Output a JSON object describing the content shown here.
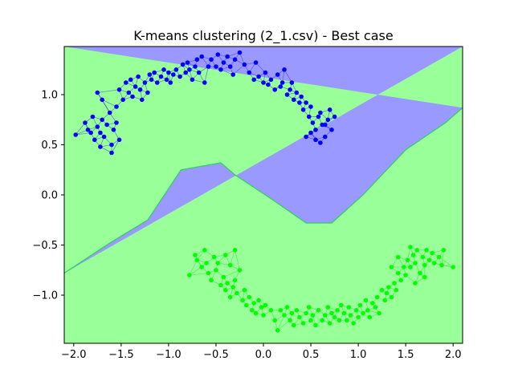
{
  "chart_data": {
    "type": "scatter",
    "title": "K-means clustering (2_1.csv) - Best case",
    "xlabel": "",
    "ylabel": "",
    "xlim": [
      -2.1,
      2.1
    ],
    "ylim": [
      -1.48,
      1.48
    ],
    "xticks": [
      "−2.0",
      "−1.5",
      "−1.0",
      "−0.5",
      "0.0",
      "0.5",
      "1.0",
      "1.5",
      "2.0"
    ],
    "xtick_values": [
      -2.0,
      -1.5,
      -1.0,
      -0.5,
      0.0,
      0.5,
      1.0,
      1.5,
      2.0
    ],
    "yticks": [
      "1.0",
      "0.5",
      "0.0",
      "−0.5",
      "−1.0"
    ],
    "ytick_values": [
      1.0,
      0.5,
      0.0,
      -0.5,
      -1.0
    ],
    "grid": false,
    "regions": [
      {
        "color": "#9999ff",
        "edge_color": "#3333dd",
        "boundary": [
          [
            -2.1,
            -0.78
          ],
          [
            -1.62,
            -0.48
          ],
          [
            -1.22,
            -0.25
          ],
          [
            -0.87,
            0.25
          ],
          [
            -0.45,
            0.32
          ],
          [
            -0.3,
            0.2
          ],
          [
            0.1,
            -0.05
          ],
          [
            0.45,
            -0.28
          ],
          [
            0.72,
            -0.28
          ],
          [
            1.05,
            0.0
          ],
          [
            1.5,
            0.45
          ],
          [
            1.92,
            0.72
          ],
          [
            2.1,
            0.87
          ]
        ]
      },
      {
        "color": "#99ff99",
        "edge_color": "#33dd33"
      }
    ],
    "series": [
      {
        "color": "#0000ff",
        "points": [
          [
            -1.98,
            0.6
          ],
          [
            -1.88,
            0.72
          ],
          [
            -1.85,
            0.65
          ],
          [
            -1.8,
            0.78
          ],
          [
            -1.78,
            0.55
          ],
          [
            -1.75,
            0.68
          ],
          [
            -1.72,
            0.62
          ],
          [
            -1.7,
            0.75
          ],
          [
            -1.68,
            0.58
          ],
          [
            -1.65,
            0.7
          ],
          [
            -1.62,
            0.82
          ],
          [
            -1.6,
            0.5
          ],
          [
            -1.58,
            0.65
          ],
          [
            -1.55,
            0.72
          ],
          [
            -1.52,
            0.55
          ],
          [
            -1.6,
            0.42
          ],
          [
            -1.72,
            0.48
          ],
          [
            -1.82,
            0.62
          ],
          [
            -1.7,
            0.95
          ],
          [
            -1.75,
            1.02
          ],
          [
            -1.55,
            0.88
          ],
          [
            -1.52,
            1.05
          ],
          [
            -1.48,
            0.95
          ],
          [
            -1.45,
            1.12
          ],
          [
            -1.42,
            1.02
          ],
          [
            -1.4,
            1.15
          ],
          [
            -1.38,
            0.98
          ],
          [
            -1.35,
            1.08
          ],
          [
            -1.32,
            1.18
          ],
          [
            -1.3,
            1.05
          ],
          [
            -1.28,
            0.95
          ],
          [
            -1.25,
            1.12
          ],
          [
            -1.22,
            1.02
          ],
          [
            -1.2,
            1.2
          ],
          [
            -1.18,
            1.15
          ],
          [
            -1.15,
            1.22
          ],
          [
            -1.12,
            1.12
          ],
          [
            -1.08,
            1.18
          ],
          [
            -1.05,
            1.25
          ],
          [
            -1.02,
            1.15
          ],
          [
            -1.0,
            1.22
          ],
          [
            -0.98,
            1.12
          ],
          [
            -0.95,
            1.2
          ],
          [
            -0.92,
            1.25
          ],
          [
            -0.88,
            1.18
          ],
          [
            -0.85,
            1.3
          ],
          [
            -0.82,
            1.22
          ],
          [
            -0.8,
            1.32
          ],
          [
            -0.78,
            1.25
          ],
          [
            -0.75,
            1.15
          ],
          [
            -0.72,
            1.28
          ],
          [
            -0.7,
            1.35
          ],
          [
            -0.68,
            1.22
          ],
          [
            -0.65,
            1.38
          ],
          [
            -0.62,
            1.12
          ],
          [
            -0.58,
            1.28
          ],
          [
            -0.55,
            1.35
          ],
          [
            -0.5,
            1.28
          ],
          [
            -0.48,
            1.4
          ],
          [
            -0.45,
            1.25
          ],
          [
            -0.42,
            1.32
          ],
          [
            -0.38,
            1.38
          ],
          [
            -0.35,
            1.28
          ],
          [
            -0.32,
            1.2
          ],
          [
            -0.3,
            1.35
          ],
          [
            -0.25,
            1.42
          ],
          [
            -0.2,
            1.3
          ],
          [
            -0.15,
            1.22
          ],
          [
            -0.1,
            1.15
          ],
          [
            -0.08,
            1.32
          ],
          [
            -0.05,
            1.18
          ],
          [
            0.0,
            1.12
          ],
          [
            0.02,
            1.22
          ],
          [
            0.05,
            1.1
          ],
          [
            0.08,
            1.15
          ],
          [
            0.12,
            1.05
          ],
          [
            0.15,
            1.2
          ],
          [
            0.18,
            1.08
          ],
          [
            0.2,
            1.12
          ],
          [
            0.22,
            1.25
          ],
          [
            0.25,
            1.0
          ],
          [
            0.28,
            1.05
          ],
          [
            0.3,
            1.12
          ],
          [
            0.32,
            0.95
          ],
          [
            0.35,
            1.02
          ],
          [
            0.38,
            0.92
          ],
          [
            0.4,
            0.98
          ],
          [
            0.42,
            0.85
          ],
          [
            0.45,
            0.92
          ],
          [
            0.48,
            0.78
          ],
          [
            0.5,
            0.88
          ],
          [
            0.52,
            0.72
          ],
          [
            0.55,
            0.65
          ],
          [
            0.58,
            0.78
          ],
          [
            0.6,
            0.82
          ],
          [
            0.62,
            0.7
          ],
          [
            0.65,
            0.58
          ],
          [
            0.68,
            0.75
          ],
          [
            0.7,
            0.85
          ],
          [
            0.72,
            0.65
          ],
          [
            0.75,
            0.78
          ],
          [
            0.45,
            0.58
          ],
          [
            0.5,
            0.62
          ],
          [
            0.55,
            0.55
          ],
          [
            0.6,
            0.52
          ],
          [
            0.65,
            0.7
          ]
        ]
      },
      {
        "color": "#00ff00",
        "points": [
          [
            -0.78,
            -0.8
          ],
          [
            -0.72,
            -0.6
          ],
          [
            -0.7,
            -0.65
          ],
          [
            -0.65,
            -0.72
          ],
          [
            -0.62,
            -0.55
          ],
          [
            -0.6,
            -0.68
          ],
          [
            -0.58,
            -0.78
          ],
          [
            -0.55,
            -0.85
          ],
          [
            -0.52,
            -0.62
          ],
          [
            -0.5,
            -0.75
          ],
          [
            -0.48,
            -0.68
          ],
          [
            -0.45,
            -0.9
          ],
          [
            -0.42,
            -0.82
          ],
          [
            -0.4,
            -0.95
          ],
          [
            -0.38,
            -0.88
          ],
          [
            -0.35,
            -1.02
          ],
          [
            -0.32,
            -0.92
          ],
          [
            -0.3,
            -0.85
          ],
          [
            -0.28,
            -0.98
          ],
          [
            -0.25,
            -0.75
          ],
          [
            -0.22,
            -1.05
          ],
          [
            -0.2,
            -0.95
          ],
          [
            -0.18,
            -1.1
          ],
          [
            -0.15,
            -1.02
          ],
          [
            -0.12,
            -1.15
          ],
          [
            -0.1,
            -1.08
          ],
          [
            -0.08,
            -1.18
          ],
          [
            -0.05,
            -1.05
          ],
          [
            -0.02,
            -1.12
          ],
          [
            0.0,
            -1.2
          ],
          [
            0.02,
            -1.1
          ],
          [
            -0.3,
            -0.55
          ],
          [
            -0.4,
            -0.6
          ],
          [
            -0.35,
            -0.7
          ],
          [
            0.08,
            -1.15
          ],
          [
            0.12,
            -1.25
          ],
          [
            0.15,
            -1.35
          ],
          [
            0.18,
            -1.15
          ],
          [
            0.22,
            -1.2
          ],
          [
            0.25,
            -1.12
          ],
          [
            0.28,
            -1.25
          ],
          [
            0.3,
            -1.18
          ],
          [
            0.32,
            -1.3
          ],
          [
            0.35,
            -1.15
          ],
          [
            0.38,
            -1.22
          ],
          [
            0.42,
            -1.28
          ],
          [
            0.45,
            -1.18
          ],
          [
            0.48,
            -1.12
          ],
          [
            0.5,
            -1.25
          ],
          [
            0.52,
            -1.2
          ],
          [
            0.55,
            -1.3
          ],
          [
            0.58,
            -1.15
          ],
          [
            0.62,
            -1.25
          ],
          [
            0.65,
            -1.2
          ],
          [
            0.68,
            -1.12
          ],
          [
            0.7,
            -1.28
          ],
          [
            0.72,
            -1.18
          ],
          [
            0.75,
            -1.22
          ],
          [
            0.78,
            -1.15
          ],
          [
            0.8,
            -1.25
          ],
          [
            0.82,
            -1.1
          ],
          [
            0.85,
            -1.18
          ],
          [
            0.88,
            -1.25
          ],
          [
            0.9,
            -1.12
          ],
          [
            0.92,
            -1.2
          ],
          [
            0.95,
            -1.28
          ],
          [
            0.98,
            -1.15
          ],
          [
            1.0,
            -1.22
          ],
          [
            1.02,
            -1.1
          ],
          [
            1.05,
            -1.18
          ],
          [
            1.08,
            -1.05
          ],
          [
            1.1,
            -1.15
          ],
          [
            1.12,
            -1.22
          ],
          [
            1.15,
            -1.08
          ],
          [
            1.18,
            -1.12
          ],
          [
            1.2,
            -1.02
          ],
          [
            1.22,
            -1.18
          ],
          [
            1.25,
            -0.95
          ],
          [
            1.28,
            -1.05
          ],
          [
            1.3,
            -0.98
          ],
          [
            1.32,
            -0.92
          ],
          [
            1.35,
            -1.02
          ],
          [
            1.38,
            -0.88
          ],
          [
            1.4,
            -0.95
          ],
          [
            1.42,
            -0.78
          ],
          [
            1.45,
            -0.85
          ],
          [
            1.48,
            -0.72
          ],
          [
            1.5,
            -0.8
          ],
          [
            1.52,
            -0.65
          ],
          [
            1.55,
            -0.72
          ],
          [
            1.58,
            -0.6
          ],
          [
            1.6,
            -0.68
          ],
          [
            1.62,
            -0.55
          ],
          [
            1.65,
            -0.78
          ],
          [
            1.68,
            -0.62
          ],
          [
            1.7,
            -0.7
          ],
          [
            1.72,
            -0.55
          ],
          [
            1.75,
            -0.65
          ],
          [
            1.78,
            -0.58
          ],
          [
            1.8,
            -0.68
          ],
          [
            1.85,
            -0.62
          ],
          [
            1.9,
            -0.55
          ],
          [
            1.55,
            -0.52
          ],
          [
            1.6,
            -0.88
          ],
          [
            1.7,
            -0.82
          ],
          [
            1.42,
            -0.62
          ],
          [
            1.35,
            -0.72
          ],
          [
            2.0,
            -0.72
          ],
          [
            1.88,
            -0.7
          ]
        ]
      }
    ]
  }
}
